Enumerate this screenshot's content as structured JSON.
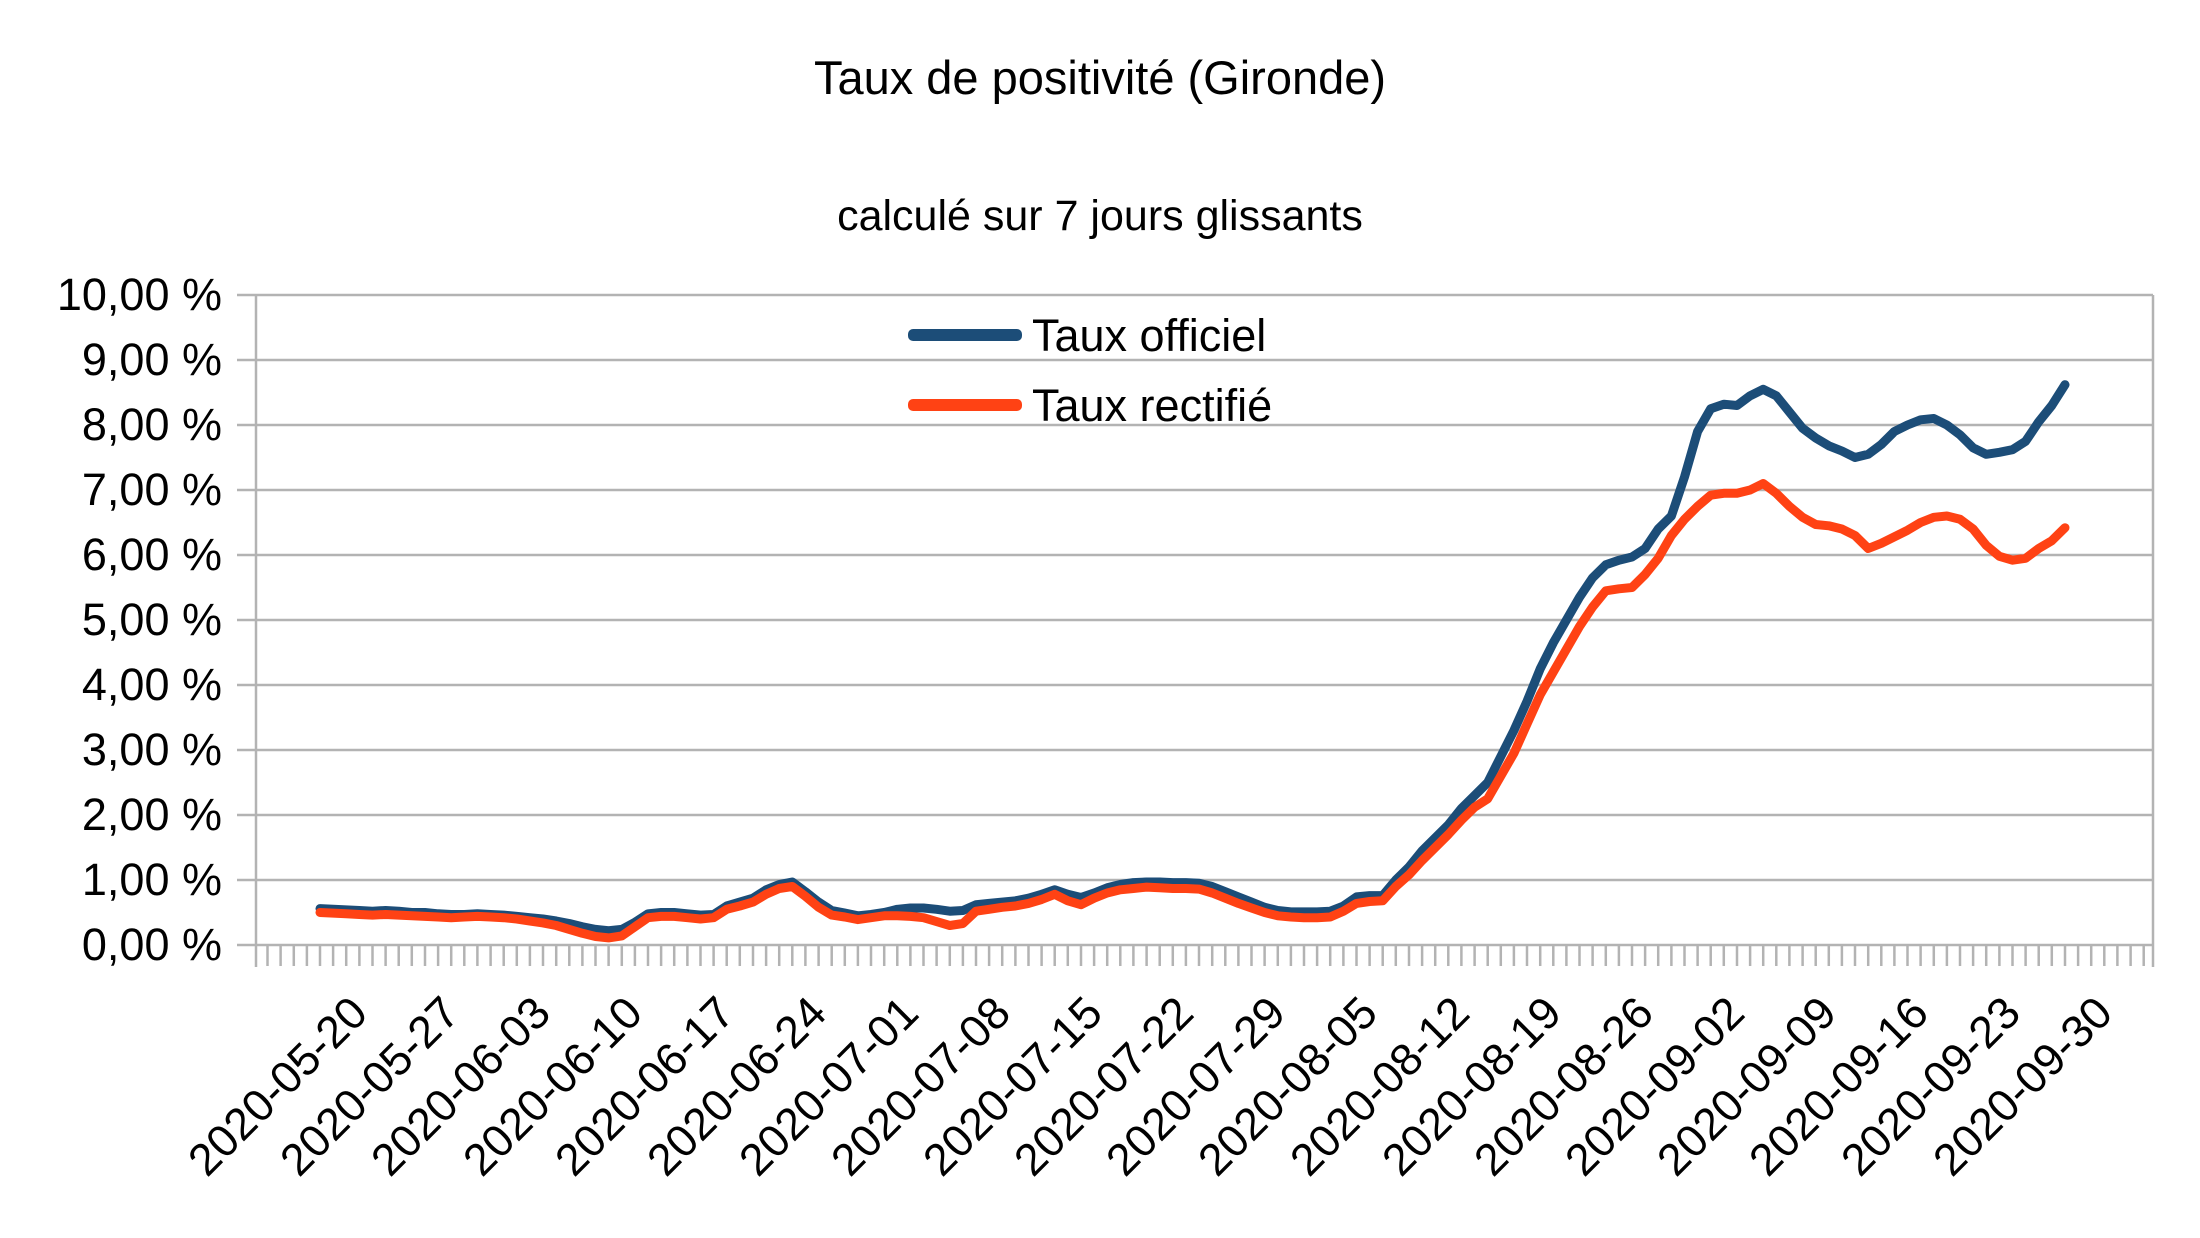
{
  "header": {
    "title": "Taux de positivité (Gironde)",
    "subtitle": "calculé sur 7 jours glissants"
  },
  "legend": {
    "items": [
      {
        "label": "Taux officiel",
        "color": "#1c4d78"
      },
      {
        "label": "Taux rectifié",
        "color": "#ff4214"
      }
    ]
  },
  "colors": {
    "grid": "#b3b3b3",
    "axis": "#b3b3b3",
    "text": "#000000",
    "background": "#ffffff"
  },
  "chart_data": {
    "type": "line",
    "title": "Taux de positivité (Gironde)",
    "subtitle": "calculé sur 7 jours glissants",
    "ylabel": "",
    "xlabel": "",
    "ylim": [
      0,
      10
    ],
    "y_step": 1,
    "grid": "horizontal",
    "legend_position": "top-center-inside",
    "y_tick_labels": [
      "10,00 %",
      "9,00 %",
      "8,00 %",
      "7,00 %",
      "6,00 %",
      "5,00 %",
      "4,00 %",
      "3,00 %",
      "2,00 %",
      "1,00 %",
      "0,00 %"
    ],
    "x_tick_labels": [
      "2020-05-20",
      "2020-05-27",
      "2020-06-03",
      "2020-06-10",
      "2020-06-17",
      "2020-06-24",
      "2020-07-01",
      "2020-07-08",
      "2020-07-15",
      "2020-07-22",
      "2020-07-29",
      "2020-08-05",
      "2020-08-12",
      "2020-08-19",
      "2020-08-26",
      "2020-09-02",
      "2020-09-09",
      "2020-09-16",
      "2020-09-23",
      "2020-09-30"
    ],
    "x_label_every": 7,
    "dates": [
      "2020-05-20",
      "2020-05-21",
      "2020-05-22",
      "2020-05-23",
      "2020-05-24",
      "2020-05-25",
      "2020-05-26",
      "2020-05-27",
      "2020-05-28",
      "2020-05-29",
      "2020-05-30",
      "2020-05-31",
      "2020-06-01",
      "2020-06-02",
      "2020-06-03",
      "2020-06-04",
      "2020-06-05",
      "2020-06-06",
      "2020-06-07",
      "2020-06-08",
      "2020-06-09",
      "2020-06-10",
      "2020-06-11",
      "2020-06-12",
      "2020-06-13",
      "2020-06-14",
      "2020-06-15",
      "2020-06-16",
      "2020-06-17",
      "2020-06-18",
      "2020-06-19",
      "2020-06-20",
      "2020-06-21",
      "2020-06-22",
      "2020-06-23",
      "2020-06-24",
      "2020-06-25",
      "2020-06-26",
      "2020-06-27",
      "2020-06-28",
      "2020-06-29",
      "2020-06-30",
      "2020-07-01",
      "2020-07-02",
      "2020-07-03",
      "2020-07-04",
      "2020-07-05",
      "2020-07-06",
      "2020-07-07",
      "2020-07-08",
      "2020-07-09",
      "2020-07-10",
      "2020-07-11",
      "2020-07-12",
      "2020-07-13",
      "2020-07-14",
      "2020-07-15",
      "2020-07-16",
      "2020-07-17",
      "2020-07-18",
      "2020-07-19",
      "2020-07-20",
      "2020-07-21",
      "2020-07-22",
      "2020-07-23",
      "2020-07-24",
      "2020-07-25",
      "2020-07-26",
      "2020-07-27",
      "2020-07-28",
      "2020-07-29",
      "2020-07-30",
      "2020-07-31",
      "2020-08-01",
      "2020-08-02",
      "2020-08-03",
      "2020-08-04",
      "2020-08-05",
      "2020-08-06",
      "2020-08-07",
      "2020-08-08",
      "2020-08-09",
      "2020-08-10",
      "2020-08-11",
      "2020-08-12",
      "2020-08-13",
      "2020-08-14",
      "2020-08-15",
      "2020-08-16",
      "2020-08-17",
      "2020-08-18",
      "2020-08-19",
      "2020-08-20",
      "2020-08-21",
      "2020-08-22",
      "2020-08-23",
      "2020-08-24",
      "2020-08-25",
      "2020-08-26",
      "2020-08-27",
      "2020-08-28",
      "2020-08-29",
      "2020-08-30",
      "2020-08-31",
      "2020-09-01",
      "2020-09-02",
      "2020-09-03",
      "2020-09-04",
      "2020-09-05",
      "2020-09-06",
      "2020-09-07",
      "2020-09-08",
      "2020-09-09",
      "2020-09-10",
      "2020-09-11",
      "2020-09-12",
      "2020-09-13",
      "2020-09-14",
      "2020-09-15",
      "2020-09-16",
      "2020-09-17",
      "2020-09-18",
      "2020-09-19",
      "2020-09-20",
      "2020-09-21",
      "2020-09-22",
      "2020-09-23",
      "2020-09-24",
      "2020-09-25",
      "2020-09-26",
      "2020-09-27",
      "2020-09-28",
      "2020-09-29",
      "2020-09-30"
    ],
    "series": [
      {
        "name": "Taux officiel",
        "color": "#1c4d78",
        "values": [
          0.56,
          0.55,
          0.54,
          0.53,
          0.52,
          0.53,
          0.52,
          0.5,
          0.5,
          0.48,
          0.47,
          0.47,
          0.48,
          0.47,
          0.46,
          0.44,
          0.42,
          0.4,
          0.37,
          0.33,
          0.28,
          0.24,
          0.22,
          0.24,
          0.35,
          0.48,
          0.5,
          0.5,
          0.48,
          0.46,
          0.47,
          0.6,
          0.66,
          0.72,
          0.85,
          0.93,
          0.97,
          0.82,
          0.66,
          0.53,
          0.49,
          0.45,
          0.47,
          0.5,
          0.55,
          0.57,
          0.57,
          0.55,
          0.52,
          0.53,
          0.62,
          0.64,
          0.66,
          0.68,
          0.72,
          0.78,
          0.85,
          0.78,
          0.73,
          0.8,
          0.88,
          0.93,
          0.96,
          0.97,
          0.97,
          0.96,
          0.96,
          0.95,
          0.9,
          0.82,
          0.74,
          0.66,
          0.58,
          0.53,
          0.51,
          0.51,
          0.51,
          0.52,
          0.6,
          0.74,
          0.76,
          0.76,
          1.0,
          1.2,
          1.45,
          1.65,
          1.85,
          2.1,
          2.3,
          2.5,
          2.9,
          3.3,
          3.75,
          4.25,
          4.65,
          5.0,
          5.35,
          5.65,
          5.85,
          5.92,
          5.97,
          6.1,
          6.4,
          6.6,
          7.2,
          7.9,
          8.25,
          8.32,
          8.3,
          8.45,
          8.55,
          8.45,
          8.2,
          7.95,
          7.8,
          7.68,
          7.6,
          7.5,
          7.55,
          7.7,
          7.9,
          8.0,
          8.08,
          8.1,
          8.0,
          7.85,
          7.65,
          7.55,
          7.58,
          7.62,
          7.75,
          8.05,
          8.3,
          8.62
        ]
      },
      {
        "name": "Taux rectifié",
        "color": "#ff4214",
        "values": [
          0.5,
          0.49,
          0.48,
          0.47,
          0.46,
          0.47,
          0.46,
          0.45,
          0.44,
          0.43,
          0.42,
          0.43,
          0.44,
          0.43,
          0.42,
          0.4,
          0.37,
          0.34,
          0.3,
          0.24,
          0.18,
          0.13,
          0.11,
          0.14,
          0.28,
          0.42,
          0.44,
          0.44,
          0.42,
          0.4,
          0.42,
          0.55,
          0.6,
          0.66,
          0.78,
          0.87,
          0.9,
          0.75,
          0.58,
          0.46,
          0.43,
          0.39,
          0.42,
          0.45,
          0.45,
          0.44,
          0.42,
          0.36,
          0.3,
          0.33,
          0.52,
          0.55,
          0.58,
          0.6,
          0.64,
          0.7,
          0.78,
          0.68,
          0.62,
          0.72,
          0.8,
          0.85,
          0.87,
          0.89,
          0.88,
          0.87,
          0.87,
          0.86,
          0.8,
          0.72,
          0.64,
          0.57,
          0.5,
          0.45,
          0.43,
          0.42,
          0.42,
          0.43,
          0.52,
          0.64,
          0.67,
          0.68,
          0.9,
          1.08,
          1.3,
          1.5,
          1.7,
          1.92,
          2.12,
          2.25,
          2.6,
          2.95,
          3.4,
          3.85,
          4.2,
          4.55,
          4.9,
          5.2,
          5.45,
          5.48,
          5.5,
          5.7,
          5.95,
          6.3,
          6.55,
          6.75,
          6.92,
          6.95,
          6.95,
          7.0,
          7.1,
          6.95,
          6.75,
          6.58,
          6.47,
          6.45,
          6.4,
          6.3,
          6.1,
          6.18,
          6.28,
          6.38,
          6.5,
          6.58,
          6.6,
          6.55,
          6.4,
          6.15,
          5.98,
          5.92,
          5.95,
          6.1,
          6.22,
          6.42
        ]
      }
    ]
  }
}
